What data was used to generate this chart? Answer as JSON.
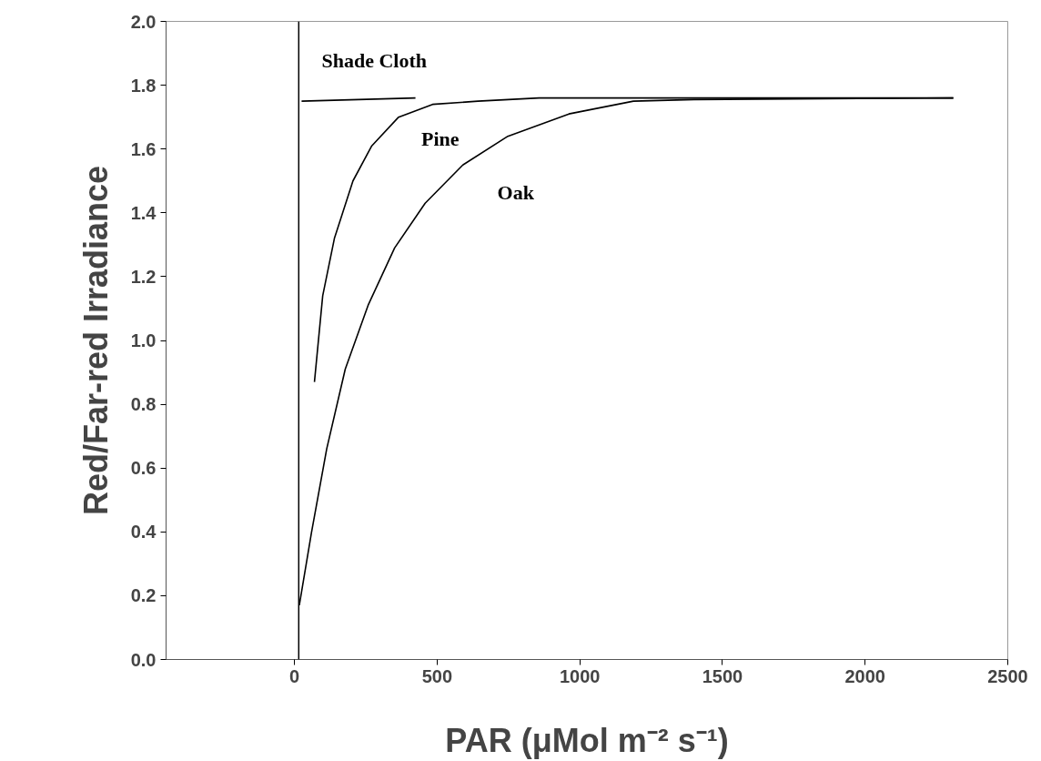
{
  "chart_data": {
    "type": "line",
    "xlabel": "PAR (μMol m⁻² s⁻¹)",
    "ylabel": "Red/Far-red Irradiance",
    "xlim": [
      -450,
      2500
    ],
    "xticks": [
      0,
      500,
      1000,
      1500,
      2000,
      2500
    ],
    "ylim": [
      0,
      2
    ],
    "yticks": [
      {
        "value": 0,
        "label": "0.0"
      },
      {
        "value": 0.2,
        "label": "0.2"
      },
      {
        "value": 0.4,
        "label": "0.4"
      },
      {
        "value": 0.6,
        "label": "0.6"
      },
      {
        "value": 0.8,
        "label": "0.8"
      },
      {
        "value": 1,
        "label": "1.0"
      },
      {
        "value": 1.2,
        "label": "1.2"
      },
      {
        "value": 1.4,
        "label": "1.4"
      },
      {
        "value": 1.6,
        "label": "1.6"
      },
      {
        "value": 1.8,
        "label": "1.8"
      },
      {
        "value": 2,
        "label": "2.0"
      }
    ],
    "grid": false,
    "marker": "none",
    "line_style": "solid",
    "series": [
      {
        "name": "Shade Cloth",
        "color": "#000000",
        "x": [
          25,
          424
        ],
        "values": [
          1.75,
          1.76
        ]
      },
      {
        "name": "Pine",
        "color": "#000000",
        "x": [
          70,
          99,
          140,
          205,
          271,
          365,
          484,
          643,
          857,
          1400,
          2309
        ],
        "values": [
          0.87,
          1.14,
          1.32,
          1.5,
          1.61,
          1.7,
          1.74,
          1.75,
          1.76,
          1.76,
          1.76
        ]
      },
      {
        "name": "Oak",
        "color": "#000000",
        "x": [
          17,
          60,
          113,
          178,
          258,
          351,
          458,
          590,
          748,
          962,
          1188,
          1400,
          2309
        ],
        "values": [
          0.17,
          0.4,
          0.66,
          0.91,
          1.11,
          1.29,
          1.43,
          1.55,
          1.64,
          1.71,
          1.75,
          1.755,
          1.76
        ]
      }
    ],
    "ref_lines": [
      {
        "axis": "x",
        "value": 15,
        "color": "#000000"
      }
    ]
  }
}
